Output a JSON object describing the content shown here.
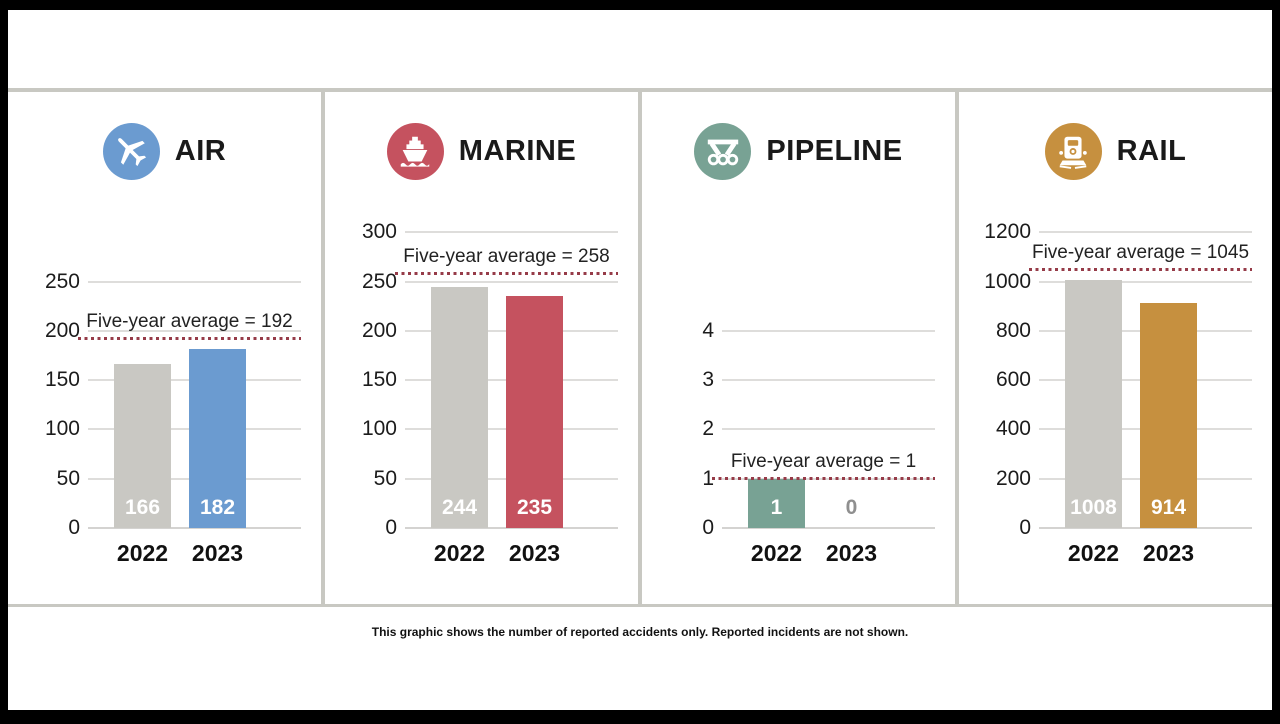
{
  "footer": {
    "note": "This graphic shows the number of reported accidents only. Reported incidents are not shown."
  },
  "colors": {
    "previous_year_bar": "#c9c8c3",
    "average_dotted_line": "#963b48",
    "gridline": "#dedddb",
    "frame_border": "#000000",
    "panel_divider": "#c8c8c2",
    "zero_value_label": "#8f8f8f",
    "air_accent": "#6b9bd0",
    "marine_accent": "#c5525f",
    "pipeline_accent": "#78a294",
    "rail_accent": "#c6903f"
  },
  "chart_data": [
    {
      "type": "bar",
      "title": "AIR",
      "icon": "airplane-icon",
      "accent": "#6b9bd0",
      "categories": [
        "2022",
        "2023"
      ],
      "values": [
        166,
        182
      ],
      "bar_colors": [
        "#c9c8c3",
        "#6b9bd0"
      ],
      "average": 192,
      "average_label": "Five-year average = 192",
      "yticks": [
        0,
        50,
        100,
        150,
        200,
        250
      ],
      "ylim": [
        0,
        250
      ],
      "grid": true,
      "legend": "none"
    },
    {
      "type": "bar",
      "title": "MARINE",
      "icon": "ship-icon",
      "accent": "#c5525f",
      "categories": [
        "2022",
        "2023"
      ],
      "values": [
        244,
        235
      ],
      "bar_colors": [
        "#c9c8c3",
        "#c5525f"
      ],
      "average": 258,
      "average_label": "Five-year average = 258",
      "yticks": [
        0,
        50,
        100,
        150,
        200,
        250,
        300
      ],
      "ylim": [
        0,
        300
      ],
      "grid": true,
      "legend": "none"
    },
    {
      "type": "bar",
      "title": "PIPELINE",
      "icon": "pipeline-icon",
      "accent": "#78a294",
      "categories": [
        "2022",
        "2023"
      ],
      "values": [
        1,
        0
      ],
      "bar_colors": [
        "#78a294",
        "#78a294"
      ],
      "average": 1,
      "average_label": "Five-year average = 1",
      "yticks": [
        0,
        1,
        2,
        3,
        4
      ],
      "ylim": [
        0,
        4
      ],
      "grid": true,
      "legend": "none"
    },
    {
      "type": "bar",
      "title": "RAIL",
      "icon": "train-icon",
      "accent": "#c6903f",
      "categories": [
        "2022",
        "2023"
      ],
      "values": [
        1008,
        914
      ],
      "bar_colors": [
        "#c9c8c3",
        "#c6903f"
      ],
      "average": 1045,
      "average_label": "Five-year average = 1045",
      "yticks": [
        0,
        200,
        400,
        600,
        800,
        1000,
        1200
      ],
      "ylim": [
        0,
        1200
      ],
      "grid": true,
      "legend": "none"
    }
  ]
}
